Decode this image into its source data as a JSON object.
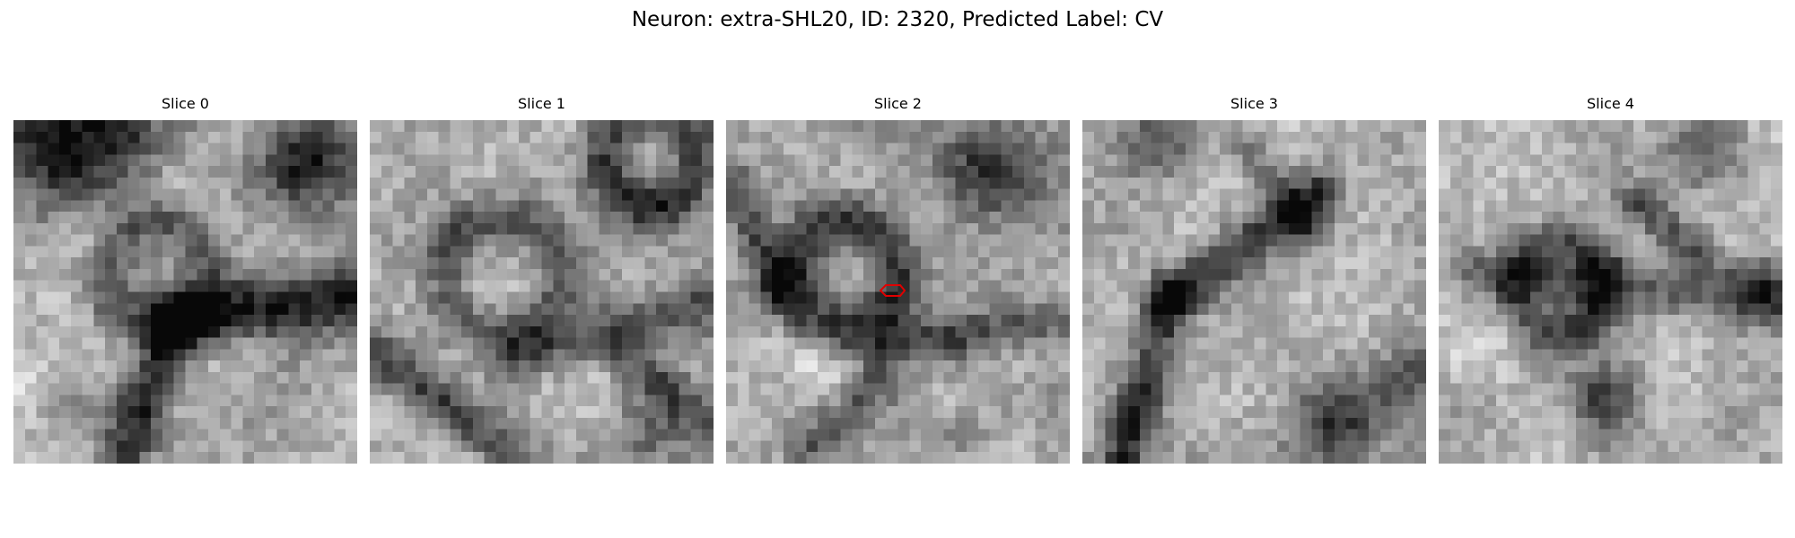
{
  "figure": {
    "title": "Neuron: extra-SHL20, ID: 2320, Predicted Label: CV"
  },
  "panels": [
    {
      "title": "Slice 0"
    },
    {
      "title": "Slice 1"
    },
    {
      "title": "Slice 2"
    },
    {
      "title": "Slice 3"
    },
    {
      "title": "Slice 4"
    }
  ],
  "colors": {
    "marker": "#e00000",
    "colormap": "grayscale"
  }
}
